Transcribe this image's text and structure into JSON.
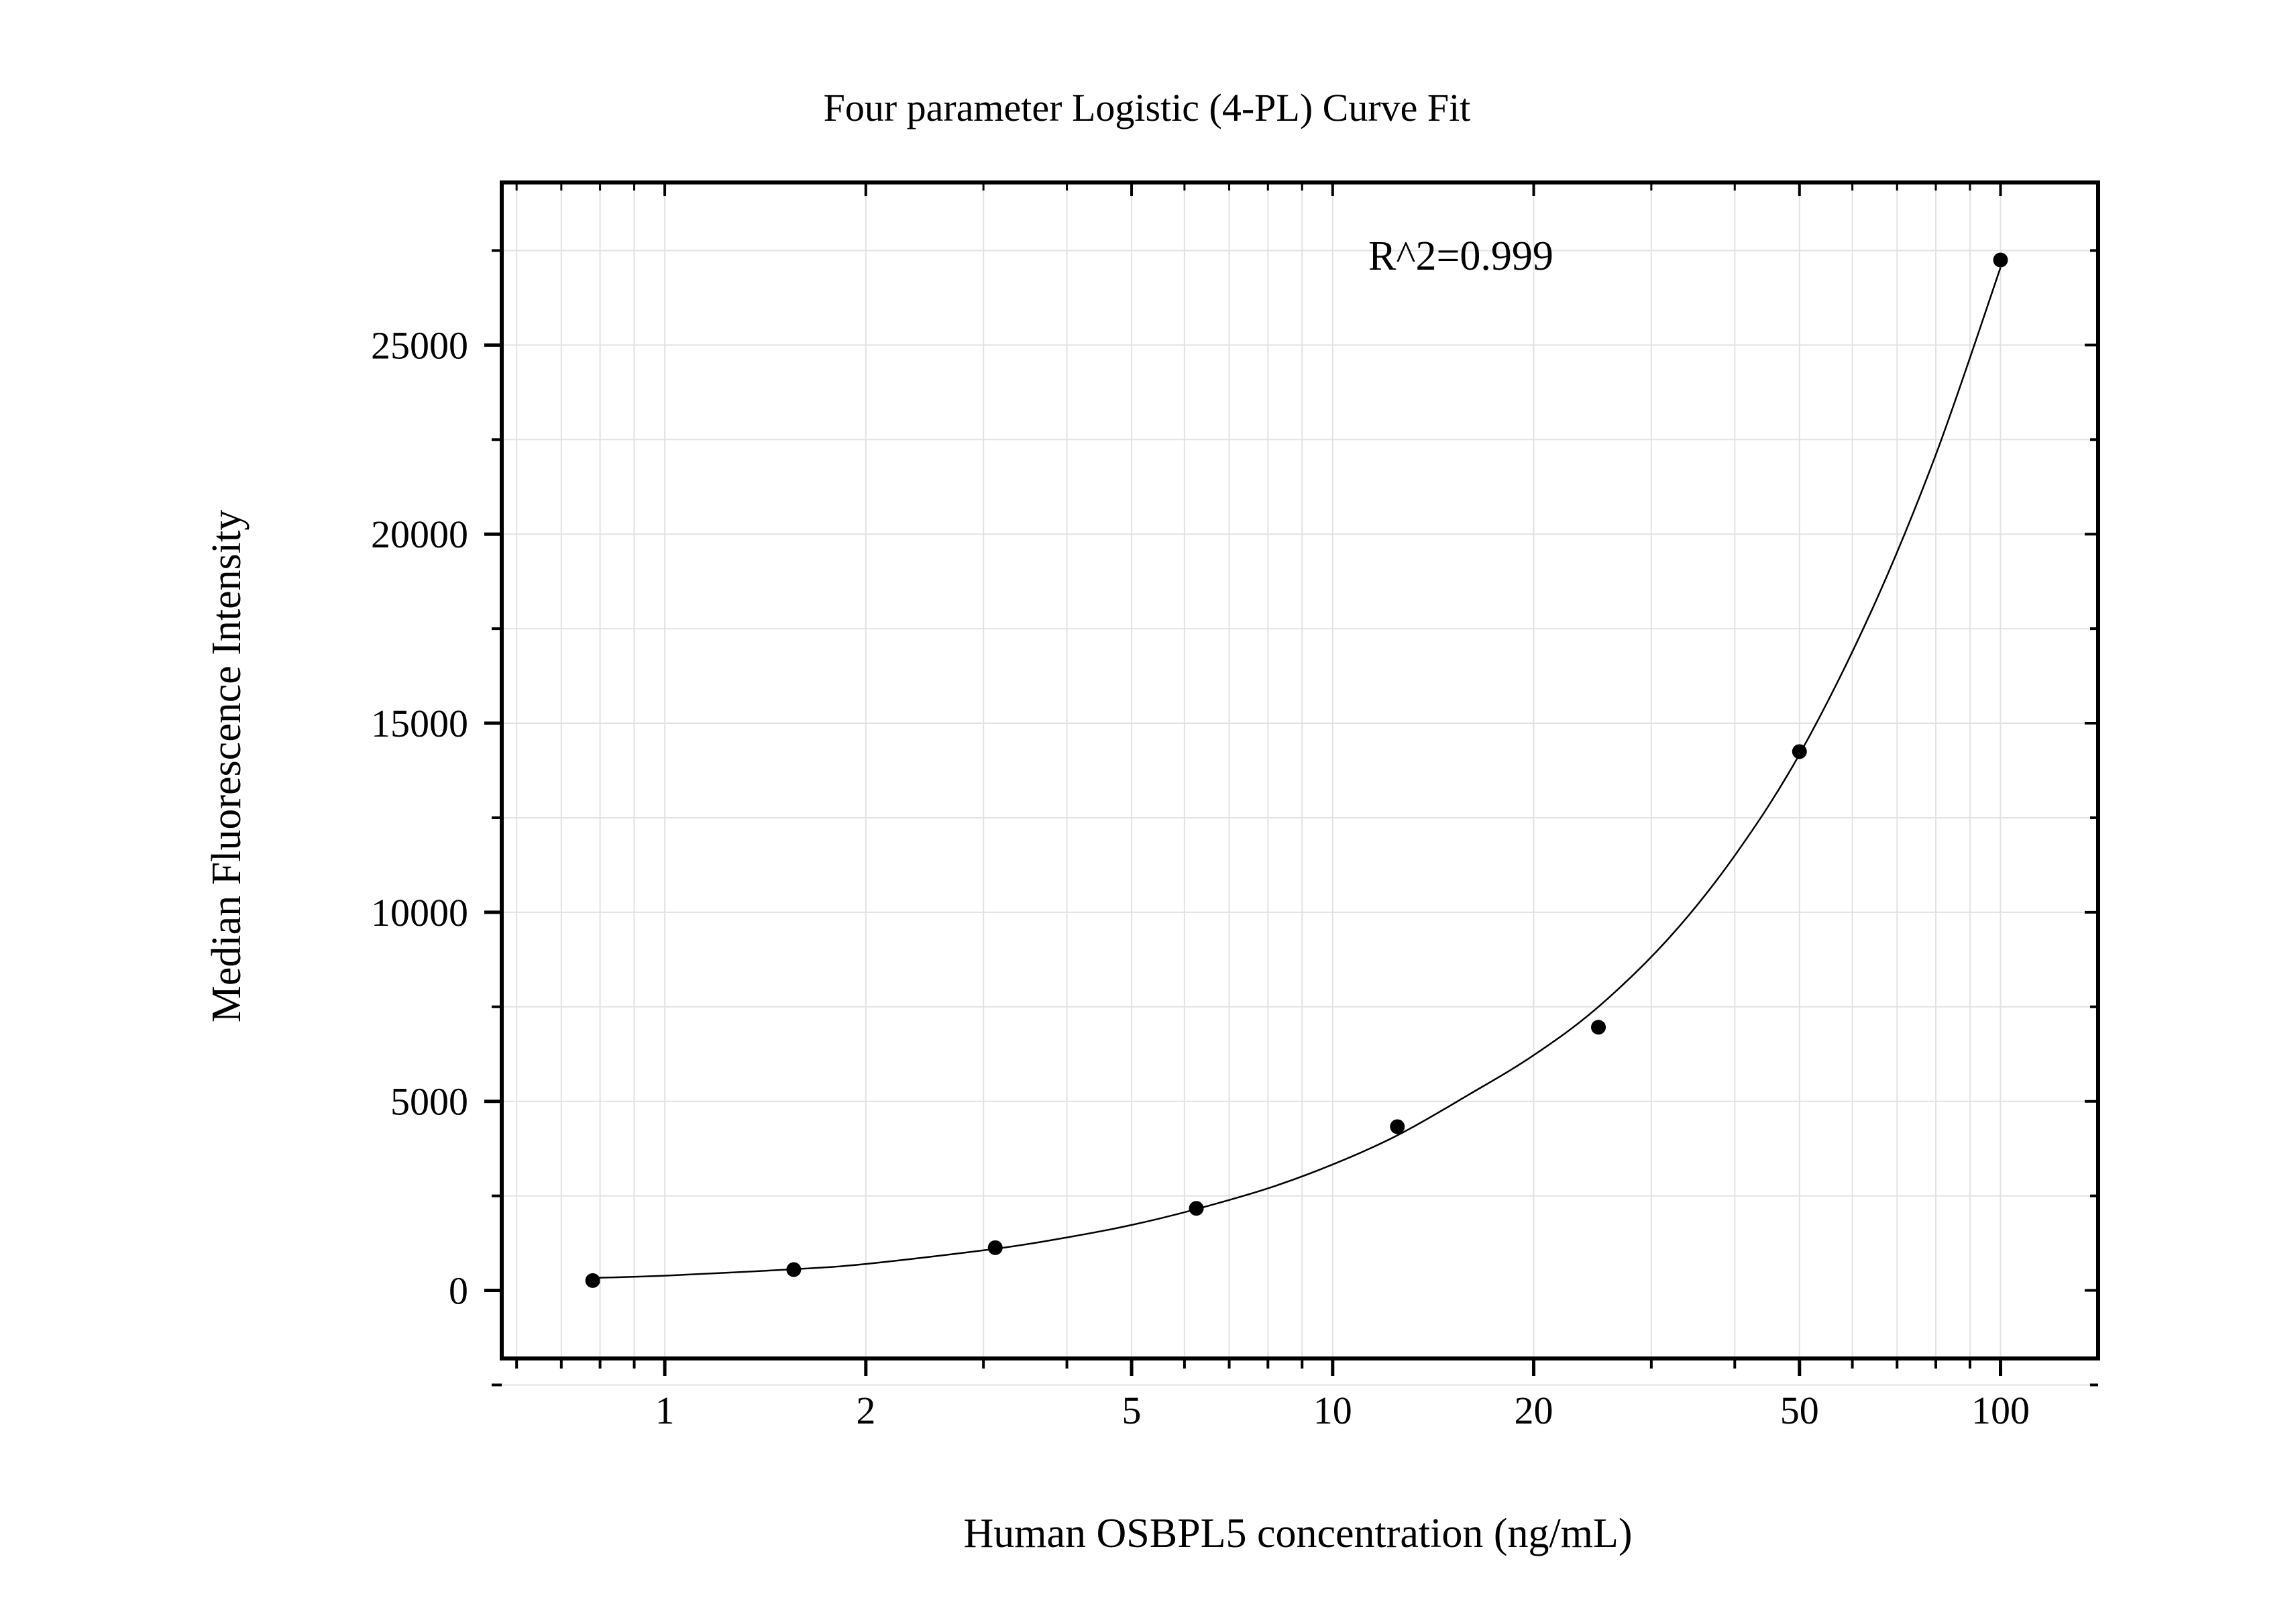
{
  "chart_data": {
    "type": "scatter",
    "title": "Four parameter Logistic (4-PL) Curve Fit",
    "xlabel": "Human OSBPL5 concentration (ng/mL)",
    "ylabel": "Median Fluorescence Intensity",
    "x_scale": "log",
    "xlim": [
      0.57,
      140
    ],
    "ylim": [
      -1800,
      29300
    ],
    "x_ticks": [
      1,
      2,
      5,
      10,
      20,
      50,
      100
    ],
    "x_tick_labels": [
      "1",
      "2",
      "5",
      "10",
      "20",
      "50",
      "100"
    ],
    "y_ticks": [
      0,
      5000,
      10000,
      15000,
      20000,
      25000
    ],
    "y_tick_labels": [
      "0",
      "5000",
      "10000",
      "15000",
      "20000",
      "25000"
    ],
    "grid": true,
    "annotation": "R^2=0.999",
    "series": [
      {
        "kind": "points",
        "x": [
          0.78,
          1.56,
          3.125,
          6.25,
          12.5,
          25,
          50,
          100
        ],
        "y": [
          260,
          550,
          1130,
          2170,
          4330,
          6960,
          14250,
          27250
        ]
      },
      {
        "kind": "fit-curve",
        "x": [
          0.78,
          1,
          1.56,
          2,
          3.125,
          4,
          5,
          6.25,
          8,
          10,
          12.5,
          16,
          20,
          25,
          32,
          40,
          50,
          64,
          80,
          100
        ],
        "y": [
          330,
          390,
          560,
          700,
          1100,
          1400,
          1730,
          2150,
          2700,
          3330,
          4100,
          5180,
          6220,
          7500,
          9350,
          11500,
          14180,
          17950,
          22100,
          27050
        ]
      }
    ],
    "colors": {
      "points": "#000000",
      "curve": "#000000",
      "grid": "#e2e2e2",
      "frame": "#000000"
    }
  }
}
